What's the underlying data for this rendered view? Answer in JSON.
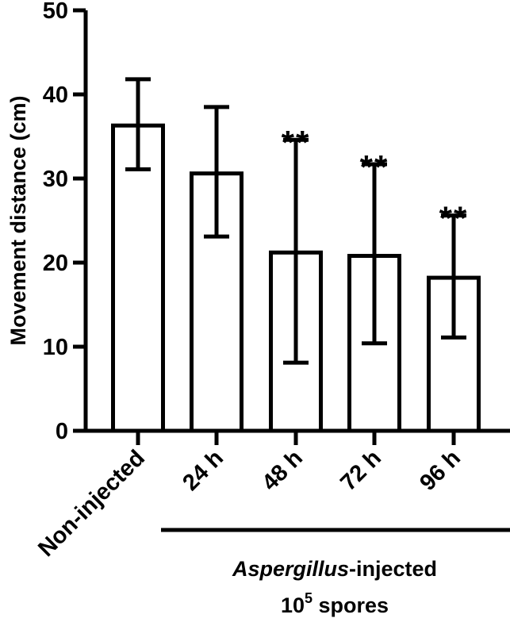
{
  "chart_data": {
    "type": "bar",
    "title": "",
    "xlabel": "",
    "ylabel": "Movement distance (cm)",
    "ylim": [
      0,
      50
    ],
    "yticks": [
      0,
      10,
      20,
      30,
      40,
      50
    ],
    "grid": false,
    "legend": null,
    "categories": [
      "Non-injected",
      "24 h",
      "48 h",
      "72 h",
      "96 h"
    ],
    "values": [
      36.3,
      30.6,
      21.2,
      20.8,
      18.2
    ],
    "error_upper": [
      41.8,
      38.5,
      34.6,
      31.7,
      25.6
    ],
    "error_lower": [
      31.1,
      23.1,
      8.1,
      10.4,
      11.1
    ],
    "annotations": [
      "",
      "",
      "**",
      "**",
      "**"
    ],
    "group_label": {
      "line1_italic": "Aspergillus",
      "line1_rest": "-injected",
      "line2_base": "10",
      "line2_sup": "5",
      "line2_rest": " spores",
      "spans_categories": [
        "24 h",
        "48 h",
        "72 h",
        "96 h"
      ]
    },
    "bar_fill": "#ffffff",
    "bar_stroke": "#000000"
  }
}
